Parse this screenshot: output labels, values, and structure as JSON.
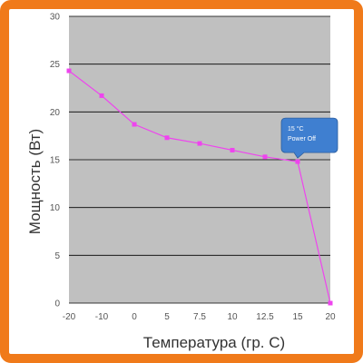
{
  "chart_data": {
    "type": "line",
    "title": "",
    "xlabel": "Температура (гр. С)",
    "ylabel": "Мощность (Вт)",
    "x_ticks": [
      "-20",
      "-10",
      "0",
      "5",
      "7.5",
      "10",
      "12.5",
      "15",
      "20"
    ],
    "y_ticks": [
      "0",
      "5",
      "10",
      "15",
      "20",
      "25",
      "30"
    ],
    "ylim": [
      0,
      30
    ],
    "grid": "horizontal",
    "series": [
      {
        "x": [
          "-20",
          "-10",
          "0",
          "5",
          "7.5",
          "10",
          "12.5",
          "15",
          "20"
        ],
        "values": [
          24.3,
          21.7,
          18.7,
          17.3,
          16.7,
          16.0,
          15.3,
          14.8,
          0.0
        ]
      }
    ],
    "annotations": [
      {
        "line1": "15 °C",
        "line2": "Power Off",
        "x": "15",
        "y": 14.8
      }
    ]
  },
  "colors": {
    "frame": "#f07a1a",
    "plot_background": "#c0c0c0",
    "gridline": "#000000",
    "series": "#ee44ee",
    "callout": "#3f7fd0"
  }
}
